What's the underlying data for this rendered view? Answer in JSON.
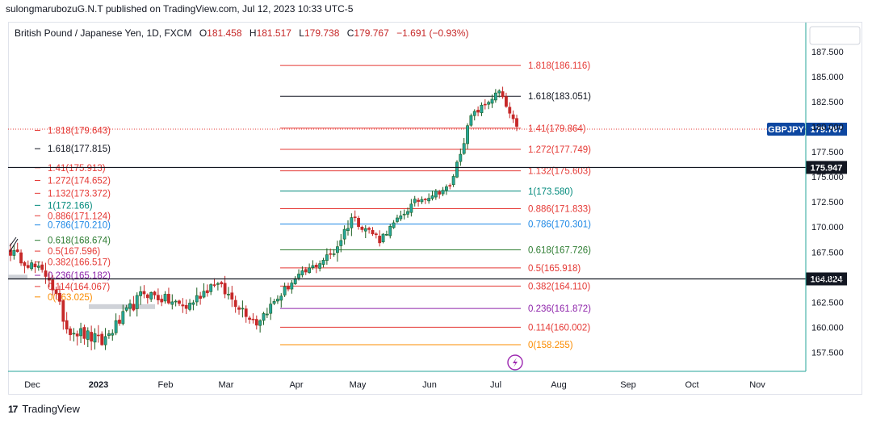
{
  "header": {
    "published": "sulongmarubozuG.N.T published on TradingView.com, Jul 12, 2023 10:33 UTC-5"
  },
  "footer": {
    "brand": "TradingView",
    "logo_text": "17"
  },
  "legend": {
    "symbol": "British Pound / Japanese Yen, 1D, FXCM",
    "open_label": "O",
    "open": "181.458",
    "high_label": "H",
    "high": "181.517",
    "low_label": "L",
    "low": "179.738",
    "close_label": "C",
    "close": "179.767",
    "change": "−1.691 (−0.93%)"
  },
  "colors": {
    "up": "#26a69a",
    "up_body": "#1b5e20",
    "down": "#c62828",
    "fib_red": "#e53935",
    "fib_black": "#131722",
    "fib_teal": "#00897b",
    "fib_blue": "#1e88e5",
    "fib_green": "#2e7d32",
    "fib_purple": "#8e24aa",
    "fib_orange": "#fb8c00",
    "axis_line": "#26a69a",
    "badge_blue": "#0d47a1"
  },
  "chart_data": {
    "type": "candlestick",
    "y_axis": {
      "min": 155.6,
      "max": 190.4,
      "ticks": [
        157.5,
        160.0,
        162.5,
        165.0,
        167.5,
        170.0,
        172.5,
        175.0,
        177.5,
        180.0,
        182.5,
        185.0,
        187.5
      ],
      "tick_labels": [
        "157.500",
        "160.000",
        "162.500",
        "165.000",
        "167.500",
        "170.000",
        "172.500",
        "175.000",
        "177.500",
        "180.000",
        "182.500",
        "185.000",
        "187.500"
      ]
    },
    "x_axis": {
      "labels": [
        "Dec",
        "2023",
        "Feb",
        "Mar",
        "Apr",
        "May",
        "Jun",
        "Jul",
        "Aug",
        "Sep",
        "Oct",
        "Nov"
      ]
    },
    "horizontal_lines": [
      {
        "price": 175.947,
        "label": "175.947"
      },
      {
        "price": 164.824,
        "label": "164.824"
      }
    ],
    "last_price": {
      "symbol": "GBPJPY",
      "price": 179.767,
      "label": "179.767"
    },
    "fib_left": [
      {
        "price": 179.643,
        "text": "1.818(179.643)",
        "color": "fib_red"
      },
      {
        "price": 177.815,
        "text": "1.618(177.815)",
        "color": "fib_black"
      },
      {
        "price": 175.913,
        "text": "1.41(175.913)",
        "color": "fib_red"
      },
      {
        "price": 174.652,
        "text": "1.272(174.652)",
        "color": "fib_red"
      },
      {
        "price": 173.372,
        "text": "1.132(173.372)",
        "color": "fib_red"
      },
      {
        "price": 172.166,
        "text": "1(172.166)",
        "color": "fib_teal"
      },
      {
        "price": 171.124,
        "text": "0.886(171.124)",
        "color": "fib_red"
      },
      {
        "price": 170.21,
        "text": "0.786(170.210)",
        "color": "fib_blue"
      },
      {
        "price": 168.674,
        "text": "0.618(168.674)",
        "color": "fib_green"
      },
      {
        "price": 167.596,
        "text": "0.5(167.596)",
        "color": "fib_red"
      },
      {
        "price": 166.517,
        "text": "0.382(166.517)",
        "color": "fib_red"
      },
      {
        "price": 165.182,
        "text": "0.236(165.182)",
        "color": "fib_purple"
      },
      {
        "price": 164.067,
        "text": "0.114(164.067)",
        "color": "fib_red"
      },
      {
        "price": 163.025,
        "text": "0(163.025)",
        "color": "fib_orange"
      }
    ],
    "fib_right": [
      {
        "price": 186.116,
        "text": "1.818(186.116)",
        "color": "fib_red"
      },
      {
        "price": 183.051,
        "text": "1.618(183.051)",
        "color": "fib_black"
      },
      {
        "price": 179.864,
        "text": "1.41(179.864)",
        "color": "fib_red"
      },
      {
        "price": 177.749,
        "text": "1.272(177.749)",
        "color": "fib_red"
      },
      {
        "price": 175.603,
        "text": "1.132(175.603)",
        "color": "fib_red"
      },
      {
        "price": 173.58,
        "text": "1(173.580)",
        "color": "fib_teal"
      },
      {
        "price": 171.833,
        "text": "0.886(171.833)",
        "color": "fib_red"
      },
      {
        "price": 170.301,
        "text": "0.786(170.301)",
        "color": "fib_blue"
      },
      {
        "price": 167.726,
        "text": "0.618(167.726)",
        "color": "fib_green"
      },
      {
        "price": 165.918,
        "text": "0.5(165.918)",
        "color": "fib_red"
      },
      {
        "price": 164.11,
        "text": "0.382(164.110)",
        "color": "fib_red"
      },
      {
        "price": 161.872,
        "text": "0.236(161.872)",
        "color": "fib_purple"
      },
      {
        "price": 160.002,
        "text": "0.114(160.002)",
        "color": "fib_red"
      },
      {
        "price": 158.255,
        "text": "0(158.255)",
        "color": "fib_orange"
      }
    ],
    "segments": [
      {
        "from": 167.8,
        "to": 165.0,
        "bars": 12,
        "noise": 1.0
      },
      {
        "from": 165.0,
        "to": 160.0,
        "bars": 5,
        "noise": 1.2
      },
      {
        "from": 160.0,
        "to": 158.5,
        "bars": 10,
        "noise": 1.3
      },
      {
        "from": 158.5,
        "to": 163.5,
        "bars": 12,
        "noise": 1.2
      },
      {
        "from": 163.5,
        "to": 162.0,
        "bars": 12,
        "noise": 1.1
      },
      {
        "from": 162.0,
        "to": 164.5,
        "bars": 8,
        "noise": 1.0
      },
      {
        "from": 164.5,
        "to": 160.5,
        "bars": 12,
        "noise": 1.1
      },
      {
        "from": 160.5,
        "to": 164.5,
        "bars": 10,
        "noise": 0.9
      },
      {
        "from": 164.5,
        "to": 167.5,
        "bars": 12,
        "noise": 0.8
      },
      {
        "from": 167.5,
        "to": 171.0,
        "bars": 5,
        "noise": 1.2
      },
      {
        "from": 171.0,
        "to": 168.8,
        "bars": 8,
        "noise": 0.9
      },
      {
        "from": 168.8,
        "to": 172.5,
        "bars": 10,
        "noise": 0.6
      },
      {
        "from": 172.5,
        "to": 174.0,
        "bars": 10,
        "noise": 0.6
      },
      {
        "from": 174.0,
        "to": 181.0,
        "bars": 6,
        "noise": 0.7
      },
      {
        "from": 181.0,
        "to": 183.5,
        "bars": 8,
        "noise": 0.6
      },
      {
        "from": 183.5,
        "to": 179.8,
        "bars": 5,
        "noise": 0.6
      }
    ]
  }
}
